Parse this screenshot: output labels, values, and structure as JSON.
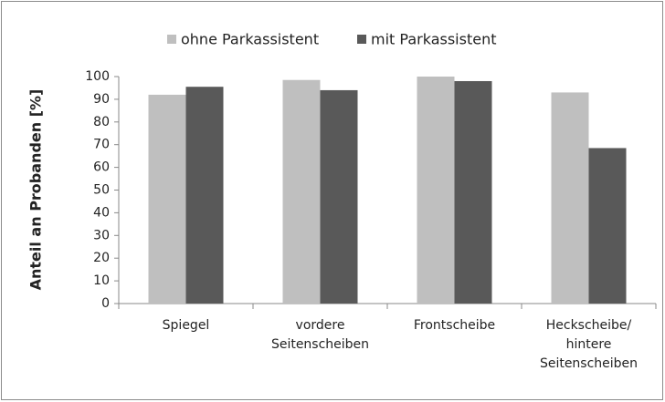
{
  "chart_data": {
    "type": "bar",
    "y_label": "Anteil an Probanden [%]",
    "categories": [
      "Spiegel",
      "vordere\nSeitenscheiben",
      "Frontscheibe",
      "Heckscheibe/\nhintere\nSeitenscheiben"
    ],
    "series": [
      {
        "name": "ohne Parkassistent",
        "color": "#bfbfbf",
        "values": [
          92,
          98.5,
          100,
          93
        ]
      },
      {
        "name": "mit Parkassistent",
        "color": "#595959",
        "values": [
          95.5,
          94,
          98,
          68.5
        ]
      }
    ],
    "ylim": [
      0,
      100
    ],
    "yticks": [
      0,
      10,
      20,
      30,
      40,
      50,
      60,
      70,
      80,
      90,
      100
    ],
    "grid": false,
    "legend": "top"
  }
}
